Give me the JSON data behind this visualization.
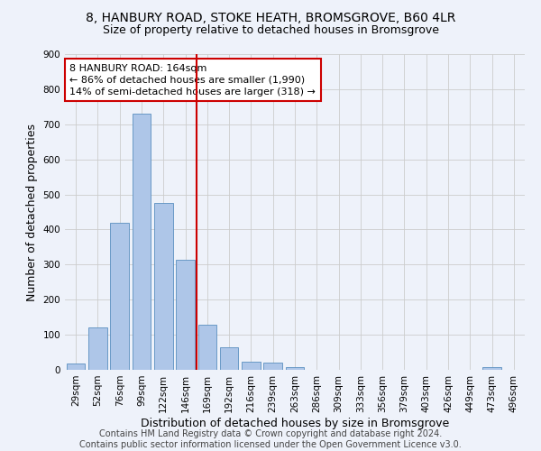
{
  "title_line1": "8, HANBURY ROAD, STOKE HEATH, BROMSGROVE, B60 4LR",
  "title_line2": "Size of property relative to detached houses in Bromsgrove",
  "xlabel": "Distribution of detached houses by size in Bromsgrove",
  "ylabel": "Number of detached properties",
  "categories": [
    "29sqm",
    "52sqm",
    "76sqm",
    "99sqm",
    "122sqm",
    "146sqm",
    "169sqm",
    "192sqm",
    "216sqm",
    "239sqm",
    "263sqm",
    "286sqm",
    "309sqm",
    "333sqm",
    "356sqm",
    "379sqm",
    "403sqm",
    "426sqm",
    "449sqm",
    "473sqm",
    "496sqm"
  ],
  "values": [
    18,
    122,
    418,
    730,
    475,
    315,
    128,
    65,
    23,
    20,
    8,
    0,
    0,
    0,
    0,
    0,
    0,
    0,
    0,
    8,
    0
  ],
  "bar_color": "#aec6e8",
  "bar_edge_color": "#5a8fc0",
  "vline_color": "#cc0000",
  "annotation_text_line1": "8 HANBURY ROAD: 164sqm",
  "annotation_text_line2": "← 86% of detached houses are smaller (1,990)",
  "annotation_text_line3": "14% of semi-detached houses are larger (318) →",
  "annotation_box_color": "#ffffff",
  "annotation_box_edge_color": "#cc0000",
  "ylim": [
    0,
    900
  ],
  "yticks": [
    0,
    100,
    200,
    300,
    400,
    500,
    600,
    700,
    800,
    900
  ],
  "grid_color": "#cccccc",
  "background_color": "#eef2fa",
  "footer_line1": "Contains HM Land Registry data © Crown copyright and database right 2024.",
  "footer_line2": "Contains public sector information licensed under the Open Government Licence v3.0.",
  "title_fontsize": 10,
  "subtitle_fontsize": 9,
  "axis_label_fontsize": 9,
  "tick_fontsize": 7.5,
  "annotation_fontsize": 8,
  "footer_fontsize": 7
}
